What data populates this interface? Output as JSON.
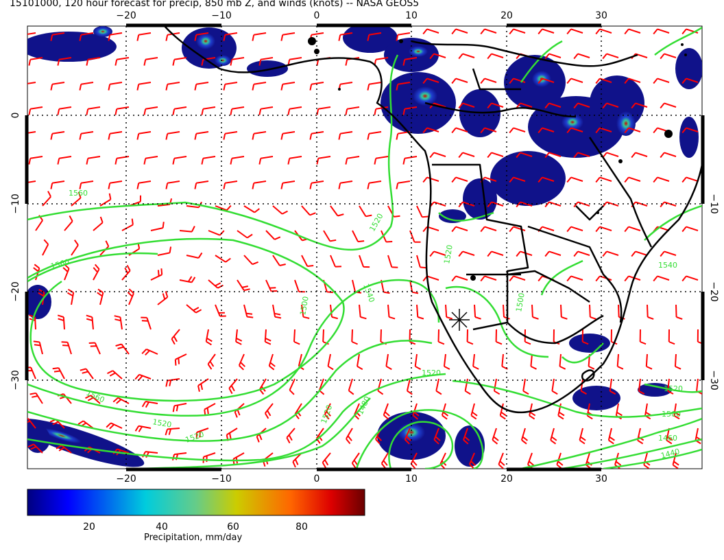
{
  "title": "15101000, 120 hour forecast for precip, 850 mb Z, and winds (knots) -- NASA GEOS5",
  "map": {
    "lon_ticks_top": [
      "−20",
      "−10",
      "0",
      "10",
      "20",
      "30"
    ],
    "lon_ticks_bottom": [
      "−20",
      "−10",
      "0",
      "10",
      "20",
      "30"
    ],
    "lat_ticks_left": [
      "0",
      "−10",
      "−20",
      "−30"
    ],
    "lat_ticks_right": [
      "−10",
      "−20",
      "−30"
    ],
    "lon_range": [
      -30,
      40
    ],
    "lat_range": [
      -40,
      10
    ],
    "contour_labels": [
      "1560",
      "1520",
      "1560",
      "1540",
      "1500",
      "1520",
      "1560",
      "1520",
      "1520",
      "1520",
      "1480",
      "1520",
      "1500",
      "1520",
      "1460",
      "1440",
      "1500",
      "1540"
    ],
    "colors": {
      "precip_low": "#00008b",
      "precip_high": "#8b0000",
      "contour": "#33dd33",
      "wind_barb": "#ff0000",
      "coastline": "#000000"
    }
  },
  "colorbar": {
    "label": "Precipitation, mm/day",
    "ticks": [
      "20",
      "40",
      "60",
      "80"
    ],
    "range": [
      0,
      100
    ]
  }
}
